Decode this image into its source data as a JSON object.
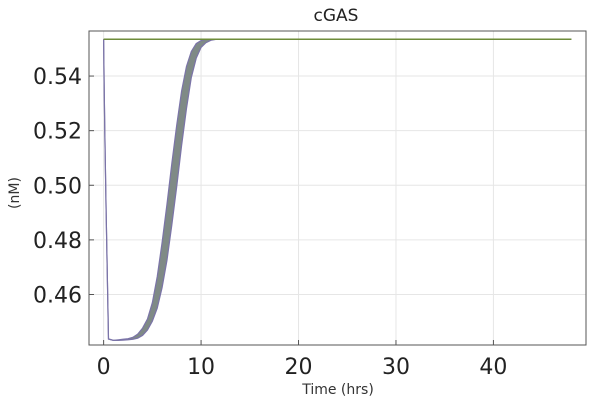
{
  "chart_data": {
    "type": "line",
    "title": "cGAS",
    "xlabel": "Time (hrs)",
    "ylabel": "(nM)",
    "xlim": [
      -1.5,
      49.5
    ],
    "ylim": [
      0.4415,
      0.5565
    ],
    "x_ticks": [
      0,
      10,
      20,
      30,
      40
    ],
    "x_tick_labels": [
      "0",
      "10",
      "20",
      "30",
      "40"
    ],
    "y_ticks": [
      0.46,
      0.48,
      0.5,
      0.52,
      0.54
    ],
    "y_tick_labels": [
      "0.46",
      "0.48",
      "0.50",
      "0.52",
      "0.54"
    ],
    "grid": true,
    "legend": false,
    "colors": {
      "ensemble_fill": "#7f8a86",
      "ensemble_edge": "#7b74a8",
      "baseline": "#6d8b3a",
      "grid": "#e6e6e6",
      "frame": "#555555"
    },
    "series": [
      {
        "x": [
          0,
          0.05,
          0.12,
          0.25,
          0.5,
          1,
          1.5,
          2,
          2.5,
          3,
          3.5,
          4,
          4.5,
          5,
          5.5,
          6,
          6.5,
          7,
          7.5,
          8,
          8.5,
          9,
          9.5,
          10,
          10.5,
          11,
          11.5,
          12,
          48
        ],
        "y": [
          0.5535,
          0.538,
          0.52,
          0.492,
          0.4437,
          0.4432,
          0.4434,
          0.4436,
          0.4438,
          0.4443,
          0.4455,
          0.4477,
          0.451,
          0.457,
          0.4665,
          0.479,
          0.493,
          0.508,
          0.522,
          0.5345,
          0.5435,
          0.549,
          0.5519,
          0.553,
          0.5534,
          0.5535,
          0.5535,
          0.5535,
          0.5535
        ]
      },
      {
        "x": [
          0,
          0.05,
          0.12,
          0.25,
          0.5,
          1,
          1.5,
          2,
          2.5,
          3,
          3.5,
          4,
          4.5,
          5,
          5.5,
          6,
          6.5,
          7,
          7.5,
          8,
          8.5,
          9,
          9.5,
          10,
          10.5,
          11,
          11.5,
          12,
          48
        ],
        "y": [
          0.5535,
          0.538,
          0.52,
          0.492,
          0.4437,
          0.4432,
          0.4432,
          0.4433,
          0.4434,
          0.4436,
          0.444,
          0.445,
          0.447,
          0.4502,
          0.455,
          0.4625,
          0.4725,
          0.4855,
          0.4995,
          0.5145,
          0.528,
          0.5395,
          0.5465,
          0.5505,
          0.5522,
          0.5531,
          0.5534,
          0.5535,
          0.5535
        ]
      },
      {
        "x": [
          0,
          48
        ],
        "y": [
          0.5535,
          0.5535
        ]
      }
    ]
  }
}
